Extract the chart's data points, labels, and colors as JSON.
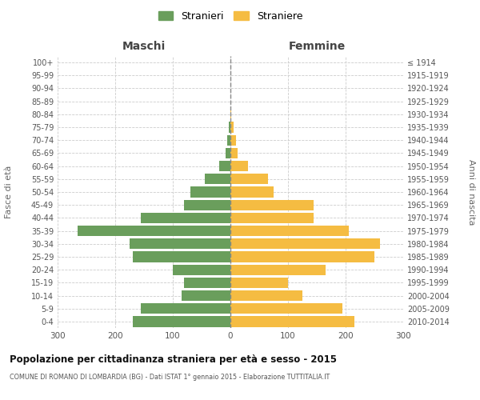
{
  "age_groups": [
    "0-4",
    "5-9",
    "10-14",
    "15-19",
    "20-24",
    "25-29",
    "30-34",
    "35-39",
    "40-44",
    "45-49",
    "50-54",
    "55-59",
    "60-64",
    "65-69",
    "70-74",
    "75-79",
    "80-84",
    "85-89",
    "90-94",
    "95-99",
    "100+"
  ],
  "birth_years": [
    "2010-2014",
    "2005-2009",
    "2000-2004",
    "1995-1999",
    "1990-1994",
    "1985-1989",
    "1980-1984",
    "1975-1979",
    "1970-1974",
    "1965-1969",
    "1960-1964",
    "1955-1959",
    "1950-1954",
    "1945-1949",
    "1940-1944",
    "1935-1939",
    "1930-1934",
    "1925-1929",
    "1920-1924",
    "1915-1919",
    "≤ 1914"
  ],
  "maschi": [
    170,
    155,
    85,
    80,
    100,
    170,
    175,
    265,
    155,
    80,
    70,
    45,
    20,
    8,
    5,
    3,
    0,
    0,
    0,
    0,
    0
  ],
  "femmine": [
    215,
    195,
    125,
    100,
    165,
    250,
    260,
    205,
    145,
    145,
    75,
    65,
    30,
    12,
    10,
    5,
    2,
    0,
    0,
    0,
    0
  ],
  "maschi_color": "#6a9e5c",
  "femmine_color": "#f5bc42",
  "background_color": "#ffffff",
  "grid_color": "#cccccc",
  "title": "Popolazione per cittadinanza straniera per età e sesso - 2015",
  "subtitle": "COMUNE DI ROMANO DI LOMBARDIA (BG) - Dati ISTAT 1° gennaio 2015 - Elaborazione TUTTITALIA.IT",
  "xlabel_left": "Maschi",
  "xlabel_right": "Femmine",
  "ylabel_left": "Fasce di età",
  "ylabel_right": "Anni di nascita",
  "legend_stranieri": "Stranieri",
  "legend_straniere": "Straniere",
  "xlim": 300
}
